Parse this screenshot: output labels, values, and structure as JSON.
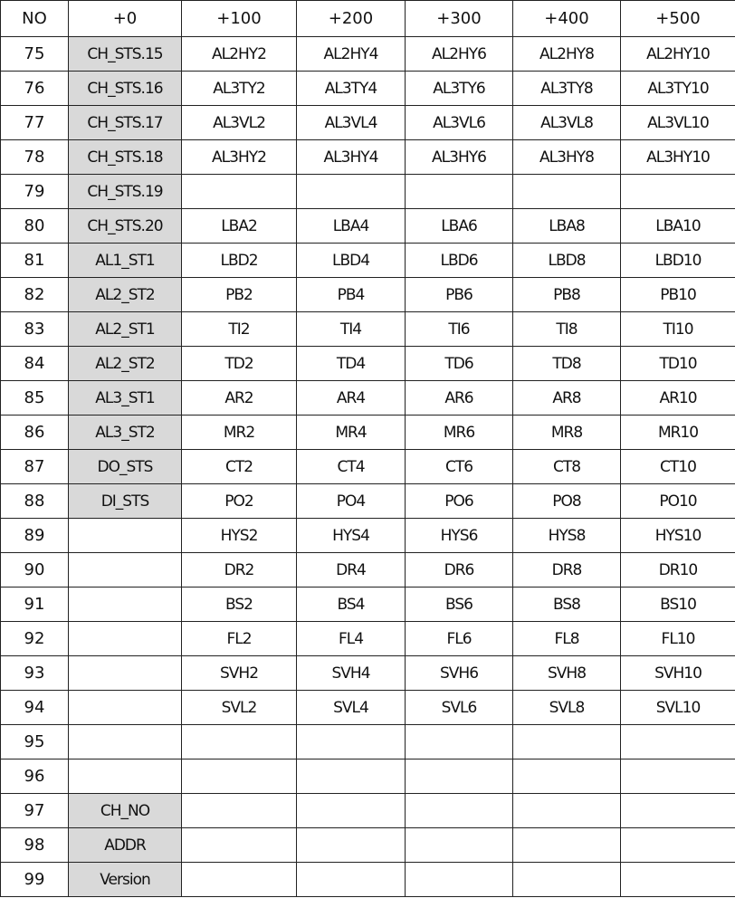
{
  "headers": [
    "NO",
    "+0",
    "+100",
    "+200",
    "+300",
    "+400",
    "+500"
  ],
  "shade_color": "#d9d9d9",
  "rows": [
    {
      "no": "75",
      "c": [
        "CH_STS.15",
        "AL2HY2",
        "AL2HY4",
        "AL2HY6",
        "AL2HY8",
        "AL2HY10"
      ]
    },
    {
      "no": "76",
      "c": [
        "CH_STS.16",
        "AL3TY2",
        "AL3TY4",
        "AL3TY6",
        "AL3TY8",
        "AL3TY10"
      ]
    },
    {
      "no": "77",
      "c": [
        "CH_STS.17",
        "AL3VL2",
        "AL3VL4",
        "AL3VL6",
        "AL3VL8",
        "AL3VL10"
      ]
    },
    {
      "no": "78",
      "c": [
        "CH_STS.18",
        "AL3HY2",
        "AL3HY4",
        "AL3HY6",
        "AL3HY8",
        "AL3HY10"
      ]
    },
    {
      "no": "79",
      "c": [
        "CH_STS.19",
        "",
        "",
        "",
        "",
        ""
      ]
    },
    {
      "no": "80",
      "c": [
        "CH_STS.20",
        "LBA2",
        "LBA4",
        "LBA6",
        "LBA8",
        "LBA10"
      ]
    },
    {
      "no": "81",
      "c": [
        "AL1_ST1",
        "LBD2",
        "LBD4",
        "LBD6",
        "LBD8",
        "LBD10"
      ]
    },
    {
      "no": "82",
      "c": [
        "AL2_ST2",
        "PB2",
        "PB4",
        "PB6",
        "PB8",
        "PB10"
      ]
    },
    {
      "no": "83",
      "c": [
        "AL2_ST1",
        "TI2",
        "TI4",
        "TI6",
        "TI8",
        "TI10"
      ]
    },
    {
      "no": "84",
      "c": [
        "AL2_ST2",
        "TD2",
        "TD4",
        "TD6",
        "TD8",
        "TD10"
      ]
    },
    {
      "no": "85",
      "c": [
        "AL3_ST1",
        "AR2",
        "AR4",
        "AR6",
        "AR8",
        "AR10"
      ]
    },
    {
      "no": "86",
      "c": [
        "AL3_ST2",
        "MR2",
        "MR4",
        "MR6",
        "MR8",
        "MR10"
      ]
    },
    {
      "no": "87",
      "c": [
        "DO_STS",
        "CT2",
        "CT4",
        "CT6",
        "CT8",
        "CT10"
      ]
    },
    {
      "no": "88",
      "c": [
        "DI_STS",
        "PO2",
        "PO4",
        "PO6",
        "PO8",
        "PO10"
      ]
    },
    {
      "no": "89",
      "c": [
        "",
        "HYS2",
        "HYS4",
        "HYS6",
        "HYS8",
        "HYS10"
      ]
    },
    {
      "no": "90",
      "c": [
        "",
        "DR2",
        "DR4",
        "DR6",
        "DR8",
        "DR10"
      ]
    },
    {
      "no": "91",
      "c": [
        "",
        "BS2",
        "BS4",
        "BS6",
        "BS8",
        "BS10"
      ]
    },
    {
      "no": "92",
      "c": [
        "",
        "FL2",
        "FL4",
        "FL6",
        "FL8",
        "FL10"
      ]
    },
    {
      "no": "93",
      "c": [
        "",
        "SVH2",
        "SVH4",
        "SVH6",
        "SVH8",
        "SVH10"
      ]
    },
    {
      "no": "94",
      "c": [
        "",
        "SVL2",
        "SVL4",
        "SVL6",
        "SVL8",
        "SVL10"
      ]
    },
    {
      "no": "95",
      "c": [
        "",
        "",
        "",
        "",
        "",
        ""
      ]
    },
    {
      "no": "96",
      "c": [
        "",
        "",
        "",
        "",
        "",
        ""
      ]
    },
    {
      "no": "97",
      "c": [
        "CH_NO",
        "",
        "",
        "",
        "",
        ""
      ]
    },
    {
      "no": "98",
      "c": [
        "ADDR",
        "",
        "",
        "",
        "",
        ""
      ]
    },
    {
      "no": "99",
      "c": [
        "Version",
        "",
        "",
        "",
        "",
        ""
      ]
    }
  ]
}
